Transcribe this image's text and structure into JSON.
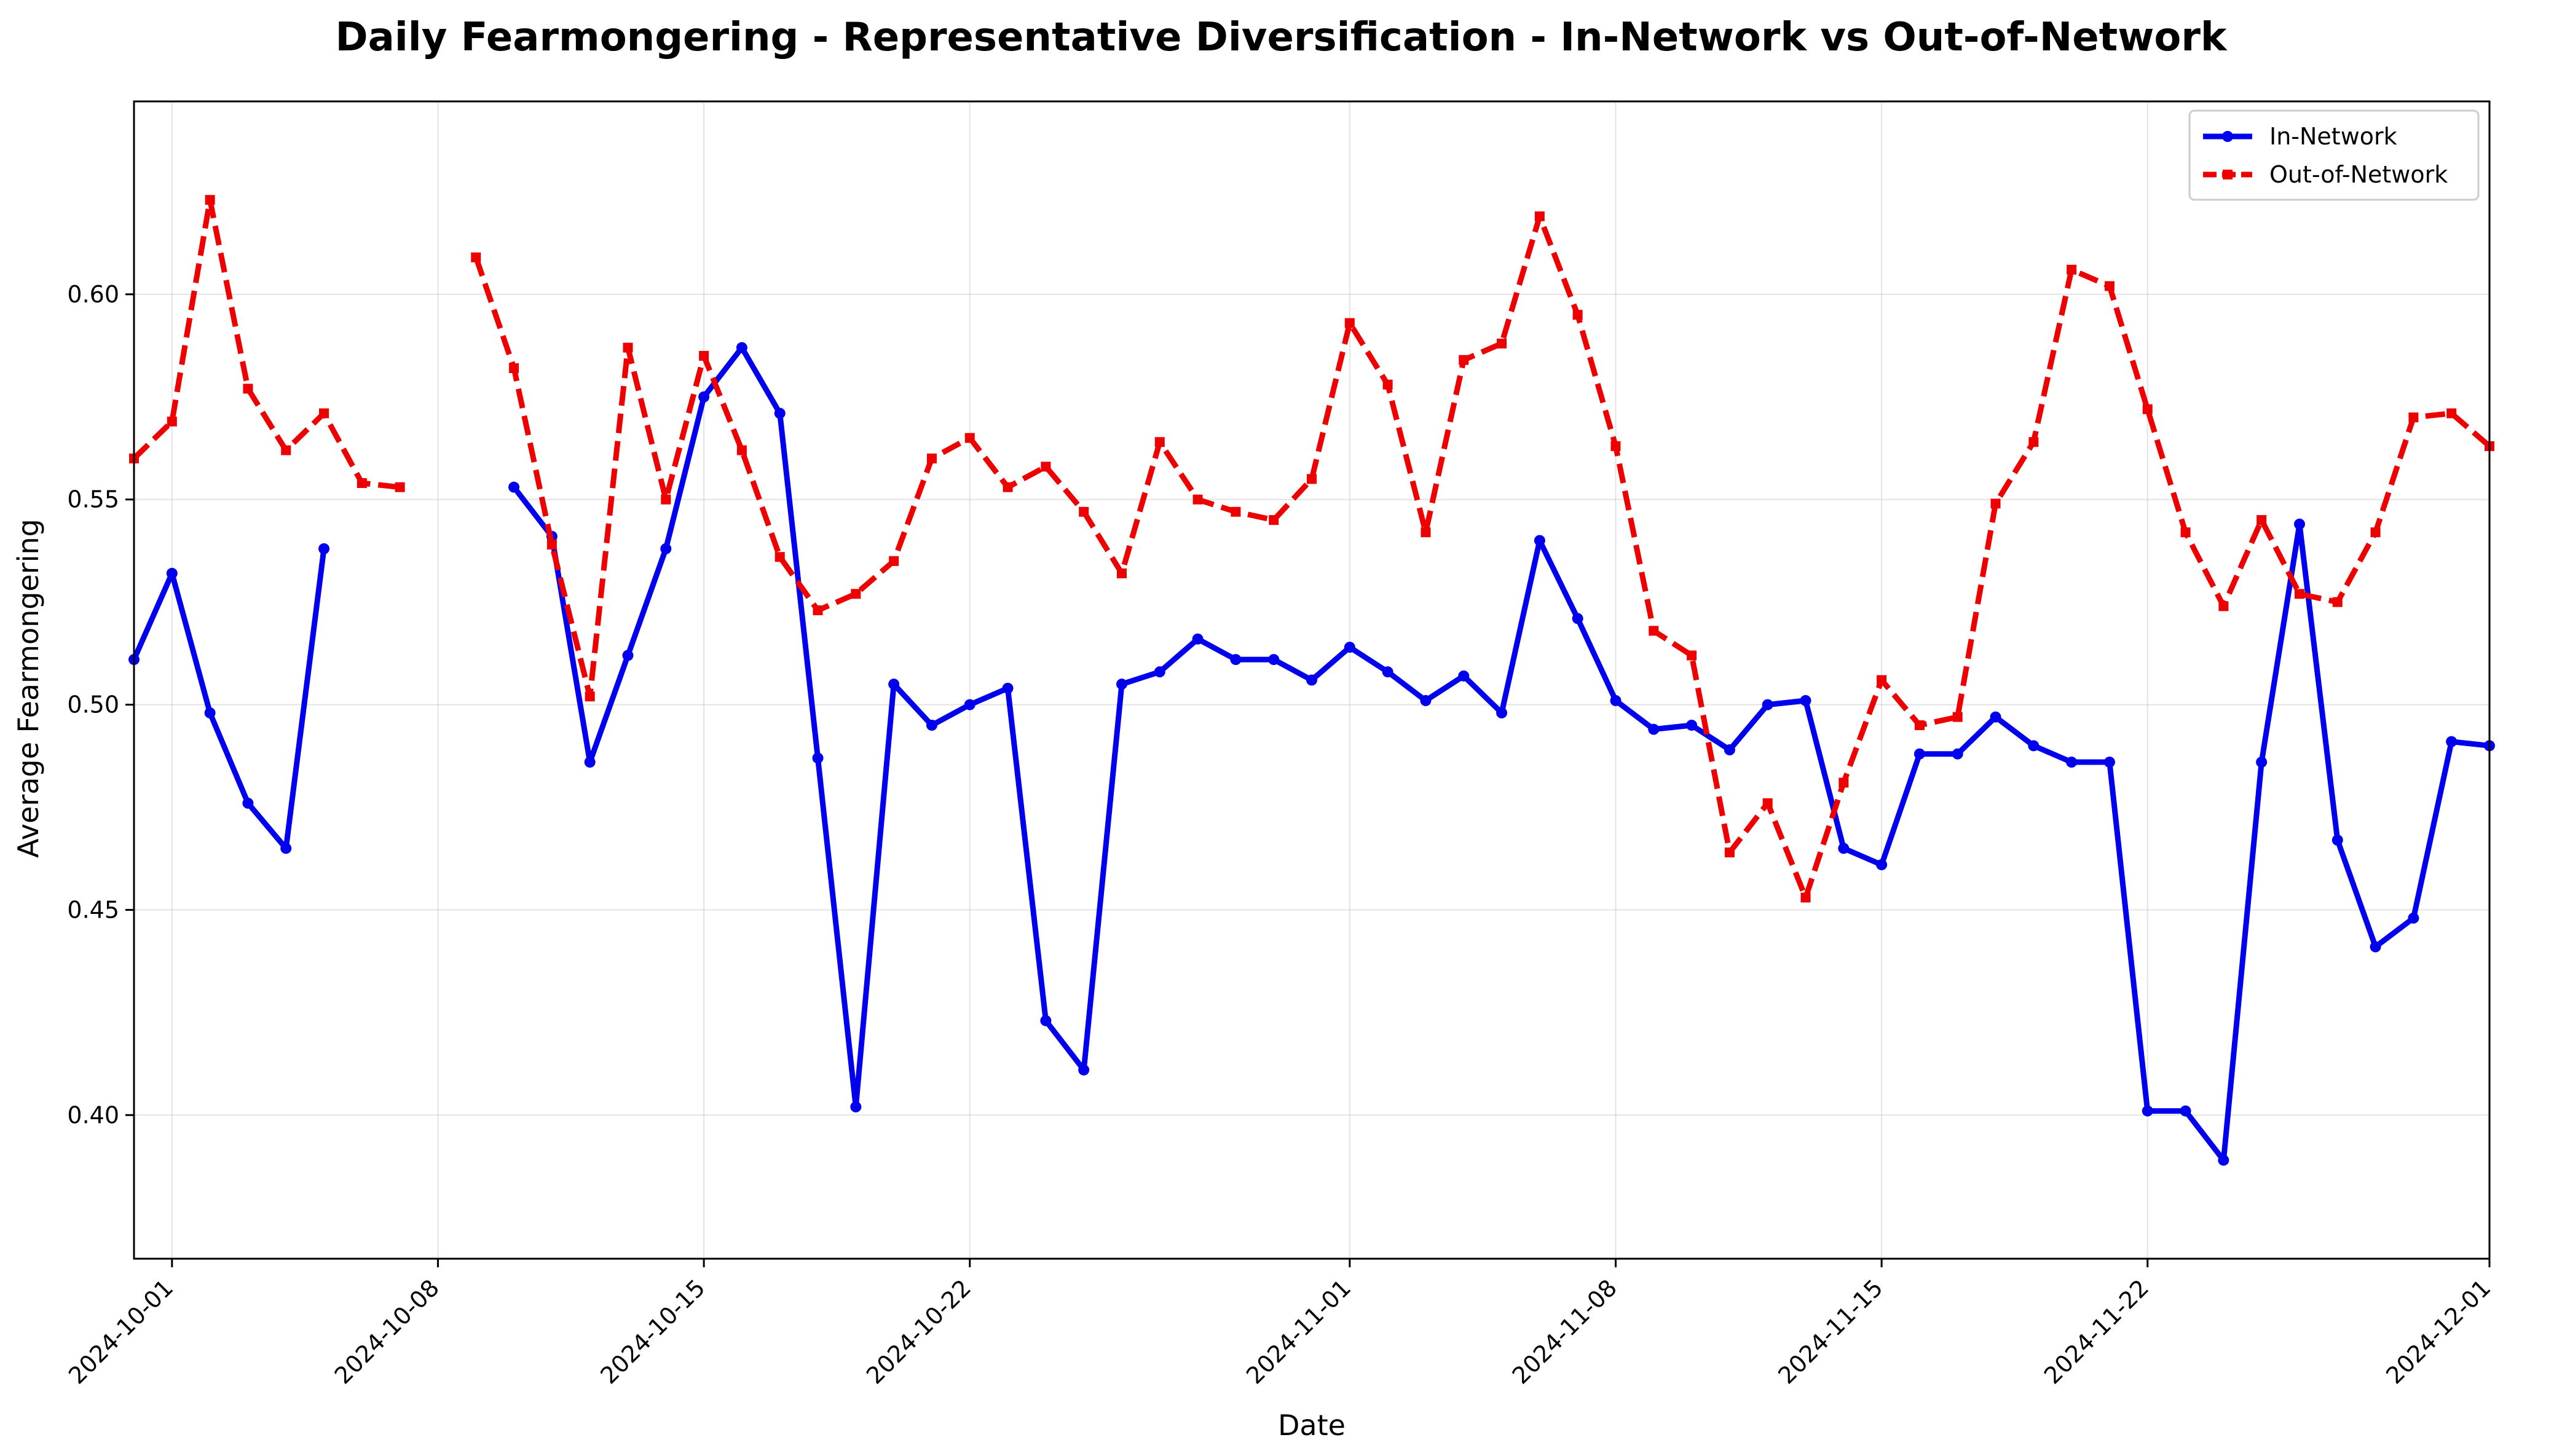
{
  "chart_data": {
    "type": "line",
    "title": "Daily Fearmongering - Representative Diversification - In-Network vs Out-of-Network",
    "xlabel": "Date",
    "ylabel": "Average Fearmongering",
    "x_start": "2024-09-30",
    "xlim": [
      "2024-09-30",
      "2024-12-01"
    ],
    "ylim": [
      0.365,
      0.647
    ],
    "x_ticks": [
      "2024-10-01",
      "2024-10-08",
      "2024-10-15",
      "2024-10-22",
      "2024-11-01",
      "2024-11-08",
      "2024-11-15",
      "2024-11-22",
      "2024-12-01"
    ],
    "y_ticks": [
      "0.40",
      "0.45",
      "0.50",
      "0.55",
      "0.60"
    ],
    "grid": true,
    "legend": "top-right",
    "series": [
      {
        "name": "In-Network",
        "color": "#0000ee",
        "style": "solid",
        "marker": "circle",
        "values": [
          0.511,
          0.532,
          0.498,
          0.476,
          0.465,
          0.538,
          null,
          null,
          null,
          null,
          0.553,
          0.541,
          0.486,
          0.512,
          0.538,
          0.575,
          0.587,
          0.571,
          0.487,
          0.402,
          0.505,
          0.495,
          0.5,
          0.504,
          0.423,
          0.411,
          0.505,
          0.508,
          0.516,
          0.511,
          0.511,
          0.506,
          0.514,
          0.508,
          0.501,
          0.507,
          0.498,
          0.54,
          0.521,
          0.501,
          0.494,
          0.495,
          0.489,
          0.5,
          0.501,
          0.465,
          0.461,
          0.488,
          0.488,
          0.497,
          0.49,
          0.486,
          0.486,
          0.401,
          0.401,
          0.389,
          0.486,
          0.544,
          0.467,
          0.441,
          0.448,
          0.491,
          0.49
        ]
      },
      {
        "name": "Out-of-Network",
        "color": "#ee0000",
        "style": "dashed",
        "marker": "square",
        "values": [
          0.56,
          0.569,
          0.623,
          0.577,
          0.562,
          0.571,
          0.554,
          0.553,
          null,
          0.609,
          0.582,
          0.539,
          0.502,
          0.587,
          0.55,
          0.585,
          0.562,
          0.536,
          0.523,
          0.527,
          0.535,
          0.56,
          0.565,
          0.553,
          0.558,
          0.547,
          0.532,
          0.564,
          0.55,
          0.547,
          0.545,
          0.555,
          0.593,
          0.578,
          0.542,
          0.584,
          0.588,
          0.619,
          0.595,
          0.563,
          0.518,
          0.512,
          0.464,
          0.476,
          0.453,
          0.481,
          0.506,
          0.495,
          0.497,
          0.549,
          0.564,
          0.606,
          0.602,
          0.572,
          0.542,
          0.524,
          0.545,
          0.527,
          0.525,
          0.542,
          0.57,
          0.571,
          0.563
        ]
      }
    ]
  }
}
